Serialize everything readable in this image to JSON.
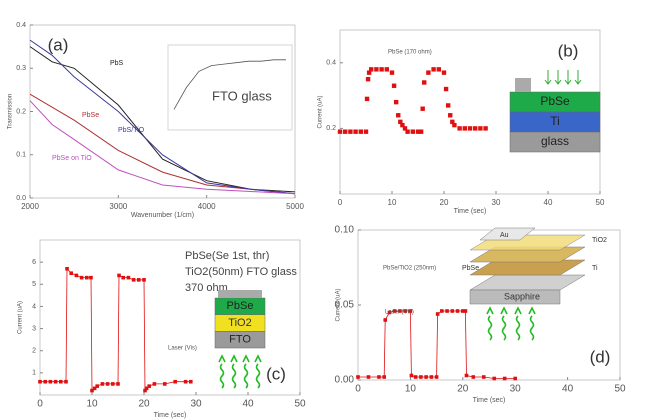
{
  "chart_data": [
    {
      "type": "line",
      "y_label": "Transmission",
      "x_label": "Wavenumber (1/cm)",
      "panel": "(a)",
      "x": [
        2000,
        2250,
        2500,
        3000,
        3500,
        4000,
        4500,
        5000
      ],
      "series": [
        {
          "name": "PbS",
          "color": "#222222",
          "values": [
            0.35,
            0.315,
            0.3,
            0.215,
            0.09,
            0.04,
            0.02,
            0.014
          ]
        },
        {
          "name": "PbSe",
          "color": "#b03030",
          "values": [
            0.24,
            0.21,
            0.18,
            0.11,
            0.06,
            0.03,
            0.02,
            0.01
          ]
        },
        {
          "name": "PbS/TiO",
          "color": "#3a3aa0",
          "values": [
            0.365,
            0.33,
            0.28,
            0.2,
            0.1,
            0.035,
            0.02,
            0.01
          ]
        },
        {
          "name": "PbSe on TiO",
          "color": "#c050c0",
          "values": [
            0.225,
            0.17,
            0.135,
            0.065,
            0.03,
            0.02,
            0.015,
            0.01
          ]
        }
      ],
      "xlim": [
        2000,
        5000
      ],
      "xticks": [
        2000,
        3000,
        4000,
        5000
      ],
      "ylim": [
        0,
        0.4
      ],
      "yticks": [
        {
          "value": 0,
          "label": "0.0"
        },
        {
          "value": 0.1,
          "label": "0.1"
        },
        {
          "value": 0.2,
          "label": "0.2"
        },
        {
          "value": 0.3,
          "label": "0.3"
        },
        {
          "value": 0.4,
          "label": "0.4"
        }
      ],
      "inset": {
        "label": "FTO glass",
        "color": "#555555",
        "ylim": [
          0,
          0.5
        ],
        "values": [
          0.1,
          0.25,
          0.36,
          0.4,
          0.41,
          0.42,
          0.43,
          0.43,
          0.44,
          0.44
        ]
      }
    },
    {
      "type": "scatter",
      "y_label": "Current (uA)",
      "x_label": "Time (sec)",
      "panel": "(b)",
      "annotations": [
        "PbSe (170 ohm)"
      ],
      "x": [
        0,
        1,
        2,
        3,
        4,
        5,
        5.2,
        5.4,
        5.6,
        6,
        7,
        8,
        9,
        10,
        10.4,
        10.8,
        11.2,
        11.6,
        12,
        12.5,
        13,
        14,
        15,
        15.6,
        15.9,
        16.2,
        17,
        18,
        19,
        20,
        20.4,
        20.8,
        21.2,
        21.6,
        22,
        23,
        24,
        25,
        26,
        27,
        28
      ],
      "series": [
        {
          "color": "#e01010",
          "values": [
            0.19,
            0.19,
            0.19,
            0.19,
            0.19,
            0.19,
            0.29,
            0.35,
            0.37,
            0.38,
            0.38,
            0.38,
            0.38,
            0.37,
            0.33,
            0.28,
            0.24,
            0.22,
            0.21,
            0.2,
            0.19,
            0.19,
            0.19,
            0.19,
            0.26,
            0.34,
            0.37,
            0.38,
            0.38,
            0.37,
            0.32,
            0.27,
            0.24,
            0.22,
            0.21,
            0.2,
            0.2,
            0.2,
            0.2,
            0.2,
            0.2
          ]
        }
      ],
      "xlim": [
        0,
        50
      ],
      "xticks": [
        0,
        10,
        20,
        30,
        40,
        50
      ],
      "ylim": [
        0,
        0.5
      ],
      "yticks": [
        0.2,
        0.4
      ],
      "layers": [
        "PbSe",
        "Ti",
        "glass"
      ],
      "layer_colors": [
        "#1faa4a",
        "#3a66c8",
        "#9a9a9a"
      ]
    },
    {
      "type": "line",
      "markers": true,
      "y_label": "Current (uA)",
      "x_label": "Time (sec)",
      "panel": "(c)",
      "annotations": [
        "PbSe(Se 1st, thr)",
        "TiO2(50nm) FTO glass",
        "370 ohm",
        "Laser (Vis)"
      ],
      "x": [
        0,
        1,
        2,
        3,
        4,
        5,
        5.2,
        6,
        7,
        8,
        9,
        9.8,
        10,
        10.5,
        11,
        12,
        13,
        14,
        15,
        15.2,
        16,
        17,
        18,
        19,
        20,
        20.2,
        20.5,
        21,
        22,
        24,
        26,
        28,
        29
      ],
      "series": [
        {
          "color": "#e01010",
          "values": [
            0.6,
            0.6,
            0.6,
            0.6,
            0.6,
            0.6,
            5.7,
            5.5,
            5.4,
            5.3,
            5.3,
            5.3,
            0.2,
            0.3,
            0.4,
            0.5,
            0.5,
            0.5,
            0.5,
            5.4,
            5.3,
            5.3,
            5.2,
            5.2,
            5.2,
            0.2,
            0.3,
            0.4,
            0.5,
            0.5,
            0.6,
            0.6,
            0.6
          ]
        }
      ],
      "xlim": [
        0,
        50
      ],
      "xticks": [
        0,
        10,
        20,
        30,
        40,
        50
      ],
      "ylim": [
        0,
        7
      ],
      "yticks": [
        1,
        2,
        3,
        4,
        5,
        6
      ],
      "layers": [
        "PbSe",
        "TiO2",
        "FTO"
      ],
      "layer_colors": [
        "#1faa4a",
        "#f0e020",
        "#9a9a9a"
      ]
    },
    {
      "type": "line",
      "markers": true,
      "y_label": "Current (uA)",
      "x_label": "Time (sec)",
      "panel": "(d)",
      "annotations": [
        "PbSe/TiO2 (250nm)",
        "Laser (Vis)"
      ],
      "x": [
        0,
        2,
        4,
        5,
        5.2,
        6,
        7,
        8,
        9,
        10,
        10.2,
        11,
        12,
        13,
        14,
        15,
        15.2,
        16,
        17,
        18,
        19,
        20,
        20.5,
        20.7,
        22,
        24,
        26,
        28,
        30
      ],
      "series": [
        {
          "color": "#e01010",
          "values": [
            0.002,
            0.002,
            0.002,
            0.002,
            0.04,
            0.045,
            0.046,
            0.046,
            0.046,
            0.046,
            0.003,
            0.002,
            0.002,
            0.002,
            0.002,
            0.002,
            0.044,
            0.046,
            0.046,
            0.046,
            0.046,
            0.046,
            0.046,
            0.003,
            0.002,
            0.002,
            0.001,
            0.001,
            0.001
          ]
        }
      ],
      "xlim": [
        0,
        50
      ],
      "xticks": [
        0,
        10,
        20,
        30,
        40,
        50
      ],
      "ylim": [
        0,
        0.1
      ],
      "yticks": [
        {
          "value": 0,
          "label": "0.00"
        },
        {
          "value": 0.05,
          "label": "0.05"
        },
        {
          "value": 0.1,
          "label": "0.10"
        }
      ],
      "layers": [
        "Au",
        "TiO2",
        "Ti",
        "PbSe",
        "Sapphire"
      ],
      "layer_colors": [
        "#e8e8e8",
        "#f3dc7a",
        "#d8b860",
        "#c9a050",
        "#d0d0d0"
      ]
    }
  ]
}
